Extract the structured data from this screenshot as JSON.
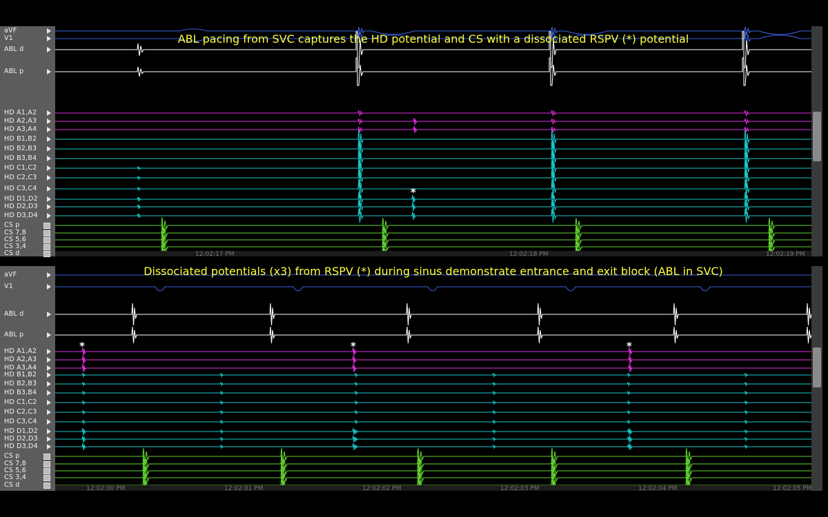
{
  "top": {
    "title": "ABL pacing from SVC captures the HD potential and CS with a dissociated RSPV (*) potential",
    "labels": [
      "aVF",
      "V1",
      "ABL d",
      "ABL p",
      "HD A1,A2",
      "HD A2,A3",
      "HD A3,A4",
      "HD B1,B2",
      "HD B2,B3",
      "HD B3,B4",
      "HD C1,C2",
      "HD C2,C3",
      "HD C3,C4",
      "HD D1,D2",
      "HD D2,D3",
      "HD D3,D4",
      "CS p",
      "CS 7,8",
      "CS 5,6",
      "CS 3,4",
      "CS d"
    ],
    "times": [
      "12:02:17 PM",
      "12:02:18 PM",
      "12:02:19 PM"
    ],
    "star": "*"
  },
  "bottom": {
    "title": "Dissociated potentials (x3) from RSPV (*) during sinus demonstrate entrance and exit block (ABL in SVC)",
    "labels": [
      "aVF",
      "V1",
      "ABL d",
      "ABL p",
      "HD A1,A2",
      "HD A2,A3",
      "HD A3,A4",
      "HD B1,B2",
      "HD B2,B3",
      "HD B3,B4",
      "HD C1,C2",
      "HD C2,C3",
      "HD C3,C4",
      "HD D1,D2",
      "HD D2,D3",
      "HD D3,D4",
      "CS p",
      "CS 7,8",
      "CS 5,6",
      "CS 3,4",
      "CS d"
    ],
    "times": [
      "12:02:00 PM",
      "12:02:01 PM",
      "12:02:02 PM",
      "12:02:03 PM",
      "12:02:04 PM",
      "12:02:05 PM"
    ],
    "star": "*"
  },
  "colors": {
    "background": "#000000",
    "label_column": "#5c5c5c",
    "title": "#ffff3d",
    "surface_ecg": "#3a63e0",
    "ablation": "#ffffff",
    "hd_a": "#e030e0",
    "hd_bcd": "#19c7c7",
    "cs": "#63d430"
  }
}
